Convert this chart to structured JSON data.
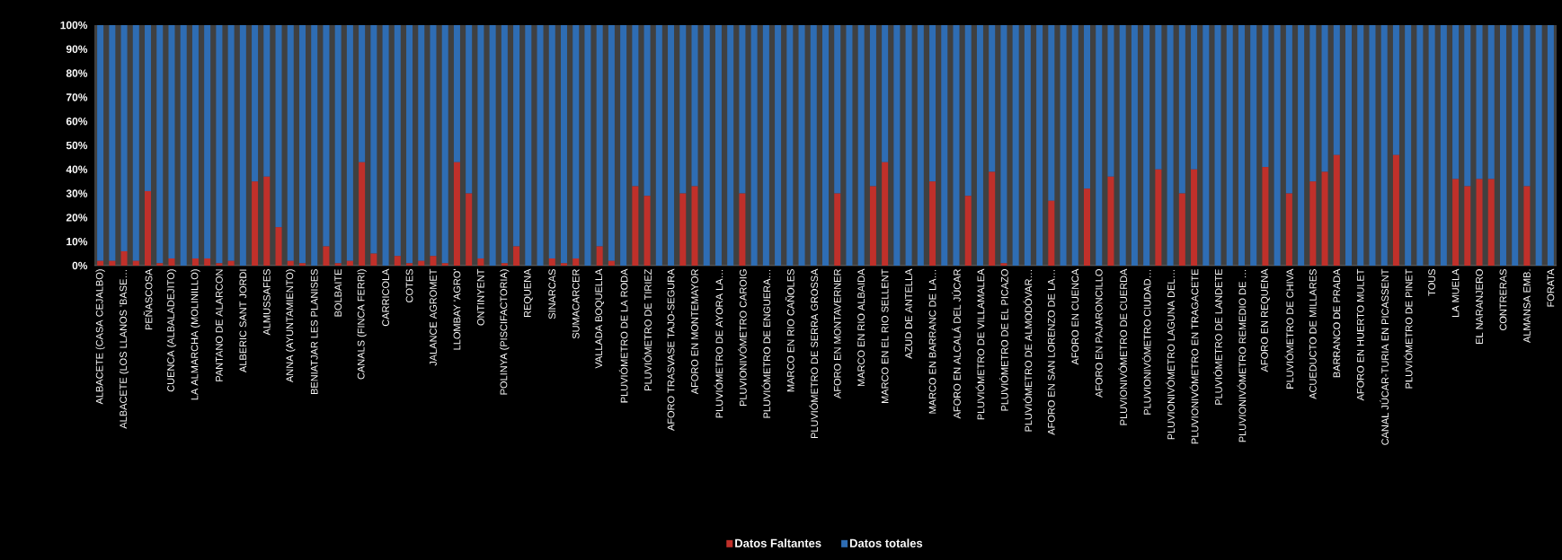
{
  "chart_data": {
    "type": "bar",
    "stacked": true,
    "legend": "bottom",
    "grid": false,
    "categories": [
      "ALBACETE (CASA CEJALBO)",
      null,
      "ALBACETE (LOS LLANOS 'BASE…",
      null,
      "PEÑASCOSA",
      null,
      "CUENCA (ALBALADEJITO)",
      null,
      "LA ALMARCHA (MOLINILLO)",
      null,
      "PANTANO DE ALARCON",
      null,
      "ALBERIC SANT JORDI",
      null,
      "ALMUSSAFES",
      null,
      "ANNA (AYUNTAMIENTO)",
      null,
      "BENIATJAR LES PLANISES",
      null,
      "BOLBAITE",
      null,
      "CANALS (FINCA FERRI)",
      null,
      "CARRICOLA",
      null,
      "COTES",
      null,
      "JALANCE AGROMET",
      null,
      "LLOMBAY 'AGRO'",
      null,
      "ONTINYENT",
      null,
      "POLINYA (PISCIFACTORIA)",
      null,
      "REQUENA",
      null,
      "SINARCAS",
      null,
      "SUMACARCER",
      null,
      "VALLADA BOQUELLA",
      null,
      "PLUVIÓMETRO DE LA RODA",
      null,
      "PLUVIÓMETRO DE TIRIEZ",
      null,
      "AFORO TRASVASE TAJO-SEGURA",
      null,
      "AFORO EN MONTEMAYOR",
      null,
      "PLUVIÓMETRO DE AYORA LA…",
      null,
      "PLUVIONIVÓMETRO CAROIG",
      null,
      "PLUVIÓMETRO DE ENGUERA…",
      null,
      "MARCO EN RIO CAÑOLES",
      null,
      "PLUVIÓMETRO DE SERRA GROSSA",
      null,
      "AFORO EN MONTAVERNER",
      null,
      "MARCO EN RIO ALBAIDA",
      null,
      "MARCO EN EL RIO SELLENT",
      null,
      "AZUD DE ANTELLA",
      null,
      "MARCO EN BARRANC DE LA…",
      null,
      "AFORO EN ALCALÁ DEL JÚCAR",
      null,
      "PLUVIÓMETRO DE VILLAMALEA",
      null,
      "PLUVIÓMETRO DE EL PICAZO",
      null,
      "PLUVIÓMETRO DE ALMODÓVAR…",
      null,
      "AFORO EN SAN LORENZO DE LA…",
      null,
      "AFORO EN CUENCA",
      null,
      "AFORO EN PAJARONCILLO",
      null,
      "PLUVIONIVÓMETRO DE CUERDA",
      null,
      "PLUVIONIVÓMETRO CIUDAD…",
      null,
      "PLUVIONIVÓMETRO LAGUNA DEL…",
      null,
      "PLUVIONIVÓMETRO EN TRAGACETE",
      null,
      "PLUVIÓMETRO DE LANDETE",
      null,
      "PLUVIONIVÓMETRO REMEDIO DE …",
      null,
      "AFORO EN REQUENA",
      null,
      "PLUVIÓMETRO DE CHIVA",
      null,
      "ACUEDUCTO DE MILLARES",
      null,
      "BARRANCO DE PRADA",
      null,
      "AFORO EN HUERTO MULET",
      null,
      "CANAL JÚCAR-TURIA EN PICASSENT",
      null,
      "PLUVIÓMETRO DE PINET",
      null,
      "TOUS",
      null,
      "LA MUELA",
      null,
      "EL NARANJERO",
      null,
      "CONTRERAS",
      null,
      "ALMANSA EMB.",
      null,
      "FORATA"
    ],
    "series": [
      {
        "name": "Datos Faltantes",
        "color": "#c0302a",
        "values": [
          2,
          2,
          6,
          2,
          31,
          1,
          3,
          0,
          3,
          3,
          1,
          2,
          0,
          35,
          37,
          16,
          2,
          1,
          0,
          8,
          1,
          2,
          43,
          5,
          0,
          4,
          1,
          2,
          4,
          1,
          43,
          30,
          3,
          0,
          1,
          8,
          0,
          0,
          3,
          1,
          3,
          0,
          8,
          2,
          0,
          33,
          29,
          0,
          0,
          30,
          33,
          0,
          0,
          0,
          30,
          0,
          0,
          0,
          0,
          0,
          0,
          0,
          30,
          0,
          0,
          33,
          43,
          0,
          0,
          0,
          35,
          0,
          0,
          29,
          0,
          39,
          1,
          0,
          0,
          0,
          27,
          0,
          0,
          32,
          0,
          37,
          0,
          0,
          0,
          40,
          0,
          30,
          40,
          0,
          0,
          0,
          0,
          0,
          41,
          0,
          30,
          0,
          35,
          39,
          46,
          0,
          0,
          0,
          0,
          46,
          0,
          0,
          0,
          0,
          36,
          33,
          36,
          36,
          0,
          0,
          33,
          0,
          0
        ]
      },
      {
        "name": "Datos totales",
        "color": "#2e6db4",
        "values": [
          98,
          98,
          94,
          98,
          69,
          99,
          97,
          100,
          97,
          97,
          99,
          98,
          100,
          65,
          63,
          84,
          98,
          99,
          100,
          92,
          99,
          98,
          57,
          95,
          100,
          96,
          99,
          98,
          96,
          99,
          57,
          70,
          97,
          100,
          99,
          92,
          100,
          100,
          97,
          99,
          97,
          100,
          92,
          98,
          100,
          67,
          71,
          100,
          100,
          70,
          67,
          100,
          100,
          100,
          70,
          100,
          100,
          100,
          100,
          100,
          100,
          100,
          70,
          100,
          100,
          67,
          57,
          100,
          100,
          100,
          65,
          100,
          100,
          71,
          100,
          61,
          99,
          100,
          100,
          100,
          73,
          100,
          100,
          68,
          100,
          63,
          100,
          100,
          100,
          60,
          100,
          70,
          60,
          100,
          100,
          100,
          100,
          100,
          59,
          100,
          70,
          100,
          65,
          61,
          54,
          100,
          100,
          100,
          100,
          54,
          100,
          100,
          100,
          100,
          64,
          67,
          64,
          64,
          100,
          100,
          67,
          100,
          100
        ]
      }
    ],
    "ylim": [
      0,
      100
    ],
    "yticks": [
      {
        "value": 0,
        "label": "0%"
      },
      {
        "value": 10,
        "label": "10%"
      },
      {
        "value": 20,
        "label": "20%"
      },
      {
        "value": 30,
        "label": "30%"
      },
      {
        "value": 40,
        "label": "40%"
      },
      {
        "value": 50,
        "label": "50%"
      },
      {
        "value": 60,
        "label": "60%"
      },
      {
        "value": 70,
        "label": "70%"
      },
      {
        "value": 80,
        "label": "80%"
      },
      {
        "value": 90,
        "label": "90%"
      },
      {
        "value": 100,
        "label": "100%"
      }
    ]
  }
}
